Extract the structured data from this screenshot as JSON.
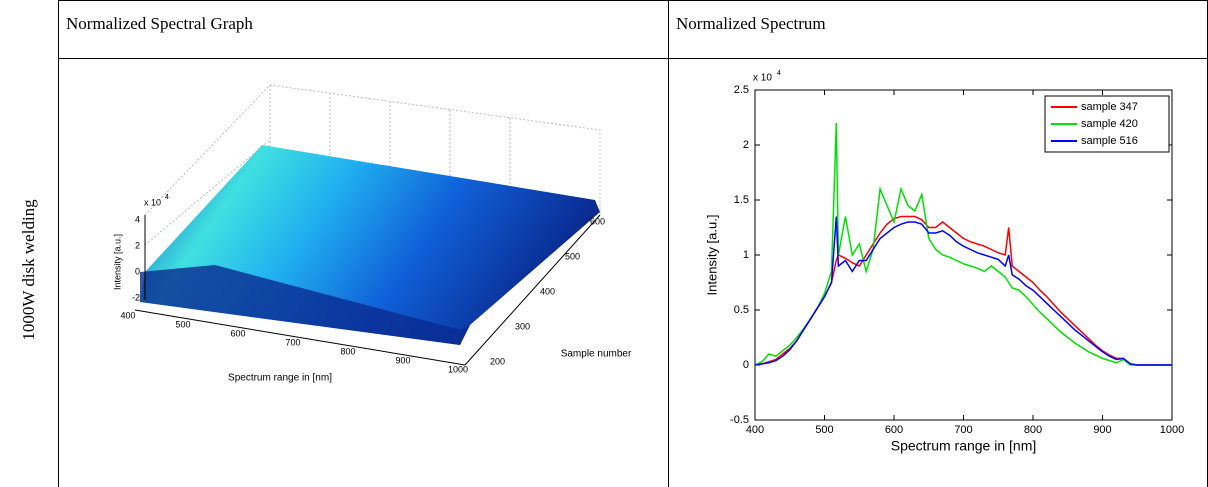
{
  "table": {
    "headers": [
      "Normalized Spectral Graph",
      "Normalized Spectrum"
    ],
    "row_label": "1000W  disk welding"
  },
  "figure_3d": {
    "z_label": "Intensity [a.u.]",
    "x_label": "Spectrum range in [nm]",
    "y_label": "Sample number",
    "z_multiplier": "x 10",
    "z_exponent": "4",
    "x_ticks": [
      400,
      500,
      600,
      700,
      800,
      900,
      1000
    ],
    "y_ticks": [
      200,
      300,
      400,
      500,
      600
    ],
    "z_ticks": [
      4,
      2,
      0,
      -2
    ]
  },
  "chart_data": {
    "type": "line",
    "x_label": "Spectrum range in [nm]",
    "y_label": "Intensity [a.u.]",
    "y_multiplier": "x 10",
    "y_exponent": "4",
    "legend": "upper right",
    "xlim": [
      400,
      1000
    ],
    "xticks": [
      400,
      500,
      600,
      700,
      800,
      900,
      1000
    ],
    "ylim": [
      -0.5,
      2.5
    ],
    "yticks": [
      -0.5,
      0,
      0.5,
      1,
      1.5,
      2,
      2.5
    ],
    "x": [
      400,
      410,
      420,
      430,
      440,
      450,
      460,
      470,
      480,
      490,
      500,
      510,
      517,
      520,
      530,
      540,
      550,
      560,
      570,
      580,
      590,
      600,
      610,
      620,
      630,
      640,
      650,
      660,
      670,
      680,
      690,
      700,
      710,
      720,
      730,
      740,
      750,
      760,
      765,
      770,
      780,
      790,
      800,
      810,
      820,
      830,
      840,
      850,
      860,
      870,
      880,
      890,
      900,
      910,
      920,
      930,
      940,
      950,
      960,
      970,
      980,
      990,
      1000
    ],
    "series": [
      {
        "name": "sample 347",
        "color": "#ff0000",
        "values": [
          0,
          0.01,
          0.03,
          0.05,
          0.1,
          0.15,
          0.22,
          0.32,
          0.42,
          0.52,
          0.62,
          0.75,
          0.95,
          1.0,
          0.97,
          0.93,
          0.9,
          1.0,
          1.1,
          1.2,
          1.28,
          1.33,
          1.35,
          1.35,
          1.35,
          1.32,
          1.25,
          1.25,
          1.3,
          1.25,
          1.2,
          1.15,
          1.12,
          1.1,
          1.08,
          1.05,
          1.02,
          1.0,
          1.25,
          0.9,
          0.85,
          0.8,
          0.75,
          0.68,
          0.62,
          0.55,
          0.48,
          0.42,
          0.36,
          0.3,
          0.24,
          0.18,
          0.13,
          0.09,
          0.06,
          0.06,
          0.01,
          0,
          0,
          0,
          0,
          0,
          0
        ]
      },
      {
        "name": "sample 420",
        "color": "#00e000",
        "values": [
          0,
          0.03,
          0.1,
          0.08,
          0.13,
          0.18,
          0.25,
          0.33,
          0.42,
          0.52,
          0.65,
          0.85,
          2.2,
          1.0,
          1.35,
          1.0,
          1.1,
          0.85,
          1.05,
          1.6,
          1.45,
          1.3,
          1.6,
          1.45,
          1.4,
          1.55,
          1.15,
          1.05,
          1.0,
          0.98,
          0.95,
          0.92,
          0.9,
          0.88,
          0.85,
          0.9,
          0.85,
          0.8,
          0.75,
          0.7,
          0.68,
          0.62,
          0.55,
          0.48,
          0.42,
          0.36,
          0.3,
          0.25,
          0.2,
          0.16,
          0.12,
          0.09,
          0.06,
          0.04,
          0.02,
          0.05,
          0,
          0,
          0,
          0,
          0,
          0,
          0
        ]
      },
      {
        "name": "sample 516",
        "color": "#0000ff",
        "values": [
          0,
          0.01,
          0.02,
          0.04,
          0.08,
          0.14,
          0.22,
          0.32,
          0.42,
          0.52,
          0.62,
          0.75,
          1.35,
          0.9,
          0.95,
          0.85,
          0.95,
          0.95,
          1.05,
          1.15,
          1.2,
          1.25,
          1.28,
          1.3,
          1.3,
          1.28,
          1.2,
          1.2,
          1.22,
          1.18,
          1.12,
          1.08,
          1.05,
          1.02,
          1.0,
          0.98,
          0.96,
          0.9,
          1.0,
          0.82,
          0.78,
          0.72,
          0.68,
          0.62,
          0.56,
          0.5,
          0.44,
          0.38,
          0.32,
          0.27,
          0.22,
          0.17,
          0.12,
          0.08,
          0.05,
          0.06,
          0.01,
          0,
          0,
          0,
          0,
          0,
          0
        ]
      }
    ]
  }
}
